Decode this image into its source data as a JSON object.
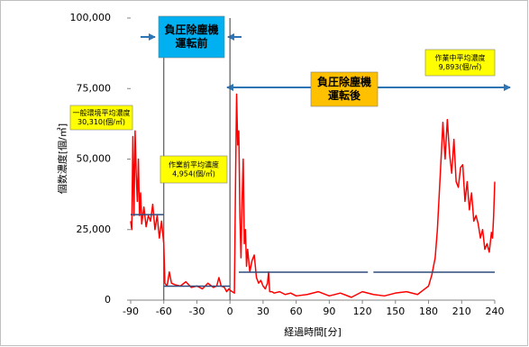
{
  "chart_data": {
    "type": "line",
    "y_label": "個数濃度[個/㎥]",
    "x_label": "経過時間[分]",
    "xlim": [
      -90,
      240
    ],
    "xticks": [
      -90,
      -60,
      -30,
      0,
      30,
      60,
      90,
      120,
      150,
      180,
      210,
      240
    ],
    "ylim": [
      0,
      100000
    ],
    "yticks": [
      0,
      {
        "value": 25000,
        "label": "25,000"
      },
      {
        "value": 50000,
        "label": "50,000"
      },
      {
        "value": 75000,
        "label": "75,000"
      },
      {
        "value": 100000,
        "label": "100,000"
      }
    ],
    "x": [
      -90,
      -89,
      -88,
      -87,
      -86,
      -85,
      -84,
      -83,
      -82,
      -81,
      -80,
      -78,
      -76,
      -74,
      -72,
      -70,
      -68,
      -66,
      -64,
      -62,
      -60,
      -59,
      -57,
      -55,
      -53,
      -50,
      -45,
      -40,
      -35,
      -30,
      -25,
      -20,
      -15,
      -12,
      -10,
      -8,
      -5,
      -3,
      -1,
      0,
      2,
      4,
      5,
      6,
      7,
      8,
      9,
      10,
      11,
      12,
      13,
      14,
      15,
      16,
      18,
      20,
      22,
      24,
      26,
      28,
      30,
      32,
      34,
      35,
      36,
      38,
      40,
      45,
      50,
      55,
      60,
      70,
      80,
      90,
      100,
      110,
      120,
      130,
      140,
      150,
      160,
      170,
      175,
      180,
      183,
      186,
      188,
      190,
      192,
      193,
      195,
      197,
      199,
      201,
      203,
      205,
      207,
      209,
      211,
      213,
      215,
      217,
      219,
      221,
      223,
      225,
      227,
      229,
      231,
      233,
      235,
      237,
      238,
      239,
      240
    ],
    "series": [
      {
        "color": "#ff0000",
        "values": [
          28000,
          25000,
          58000,
          30000,
          60000,
          45000,
          35000,
          50000,
          30000,
          38000,
          27000,
          33000,
          26000,
          30000,
          28000,
          34000,
          25000,
          30000,
          22000,
          28000,
          20000,
          6000,
          5000,
          10000,
          6000,
          5500,
          5000,
          6500,
          4500,
          5000,
          4000,
          6000,
          4500,
          5000,
          8000,
          5000,
          4500,
          3000,
          4000,
          3500,
          3000,
          2500,
          40000,
          73000,
          55000,
          60000,
          30000,
          15000,
          35000,
          50000,
          20000,
          25000,
          12000,
          18000,
          10000,
          14000,
          16000,
          8000,
          6000,
          7000,
          5000,
          4000,
          6000,
          10000,
          3000,
          3000,
          2500,
          3000,
          2000,
          2500,
          1500,
          2000,
          3000,
          1500,
          2500,
          1000,
          3000,
          2000,
          1500,
          2500,
          3000,
          2000,
          3500,
          5000,
          9000,
          15000,
          25000,
          40000,
          55000,
          63000,
          50000,
          64000,
          52000,
          45000,
          57000,
          42000,
          40000,
          47000,
          48000,
          35000,
          42000,
          32000,
          38000,
          28000,
          30000,
          27000,
          22000,
          25000,
          18000,
          20000,
          17000,
          24000,
          22000,
          30000,
          42000
        ]
      }
    ],
    "phase_lines": [
      -60,
      0
    ],
    "phases": [
      {
        "lines": [
          "負圧除塵機",
          "運転前"
        ],
        "color": "#00b0f0"
      },
      {
        "lines": [
          "負圧除塵機",
          "運転後"
        ],
        "color": "#ffc000"
      }
    ],
    "average_color": "#2f4b7c",
    "label_color": "#ffff00",
    "averages": [
      {
        "value": 30310,
        "segments": [
          [
            -90,
            -60
          ]
        ],
        "label": [
          "一般環境平均濃度",
          "30,310(個/㎥)"
        ]
      },
      {
        "value": 4954,
        "segments": [
          [
            -60,
            0
          ]
        ],
        "label": [
          "作業前平均濃度",
          "4,954(個/㎥)"
        ]
      },
      {
        "value": 9893,
        "segments": [
          [
            8,
            125
          ],
          [
            130,
            240
          ]
        ],
        "label": [
          "作業中平均濃度",
          "9,893(個/㎥)"
        ]
      }
    ]
  }
}
